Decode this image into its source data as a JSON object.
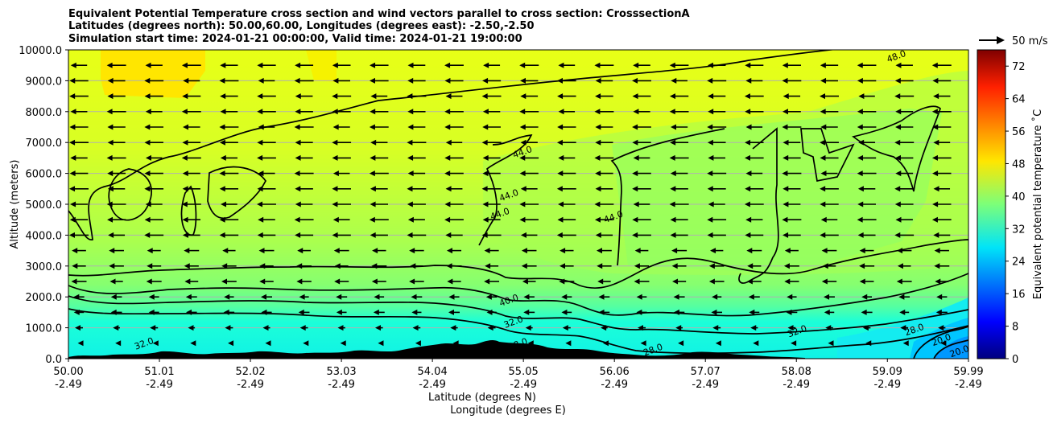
{
  "chart_data": {
    "type": "heatmap",
    "title_lines": [
      "Equivalent Potential Temperature cross section and wind vectors parallel to cross section: CrosssectionA",
      "Latitudes (degrees north): 50.00,60.00, Longitudes (degrees east): -2.50,-2.50",
      "Simulation start time: 2024-01-21 00:00:00, Valid time: 2024-01-21 19:00:00"
    ],
    "xlabel_lat": "Latitude (degrees N)",
    "xlabel_lon": "Longitude (degrees E)",
    "ylabel": "Altitude (meters)",
    "x_ticks_lat": [
      "50.00",
      "51.01",
      "52.02",
      "53.03",
      "54.04",
      "55.05",
      "56.06",
      "57.07",
      "58.08",
      "59.09",
      "59.99"
    ],
    "x_ticks_lon": [
      "-2.49",
      "-2.49",
      "-2.49",
      "-2.49",
      "-2.49",
      "-2.49",
      "-2.49",
      "-2.49",
      "-2.49",
      "-2.49",
      "-2.49"
    ],
    "x_range": [
      50.0,
      59.99
    ],
    "y_ticks": [
      "0.0",
      "1000.0",
      "2000.0",
      "3000.0",
      "4000.0",
      "5000.0",
      "6000.0",
      "7000.0",
      "8000.0",
      "9000.0",
      "10000.0"
    ],
    "y_range": [
      0,
      10000
    ],
    "colorbar": {
      "label": "Equivalent potential temperature $^\\circ$C",
      "label_display": "Equivalent potential temperature ˚C",
      "min": 0,
      "max": 76,
      "ticks": [
        "0",
        "8",
        "16",
        "24",
        "32",
        "40",
        "48",
        "56",
        "64",
        "72"
      ]
    },
    "quiver_key": "50 m/s",
    "contour_labels": [
      {
        "text": "48.0",
        "lat": 59.2,
        "alt": 9700
      },
      {
        "text": "44.0",
        "lat": 55.05,
        "alt": 6600
      },
      {
        "text": "44.0",
        "lat": 54.9,
        "alt": 5200
      },
      {
        "text": "44.0",
        "lat": 54.8,
        "alt": 4600
      },
      {
        "text": "44.0",
        "lat": 56.06,
        "alt": 4500
      },
      {
        "text": "40.0",
        "lat": 54.9,
        "alt": 1800
      },
      {
        "text": "32.0",
        "lat": 54.95,
        "alt": 1100
      },
      {
        "text": "32.0",
        "lat": 58.1,
        "alt": 800
      },
      {
        "text": "28.0",
        "lat": 55.0,
        "alt": 380
      },
      {
        "text": "28.0",
        "lat": 56.5,
        "alt": 200
      },
      {
        "text": "28.0",
        "lat": 59.4,
        "alt": 850
      },
      {
        "text": "32.0",
        "lat": 50.85,
        "alt": 400
      },
      {
        "text": "20.0",
        "lat": 59.7,
        "alt": 520
      },
      {
        "text": "20.0",
        "lat": 59.9,
        "alt": 150
      }
    ]
  },
  "colors": {
    "upper": "#e4ff1a",
    "mid": "#8cff6c",
    "low": "#1dffd9",
    "cyan": "#00e4f8",
    "warm": "#ffe600",
    "terrain": "#000000",
    "grid": "#b0b0b0"
  }
}
